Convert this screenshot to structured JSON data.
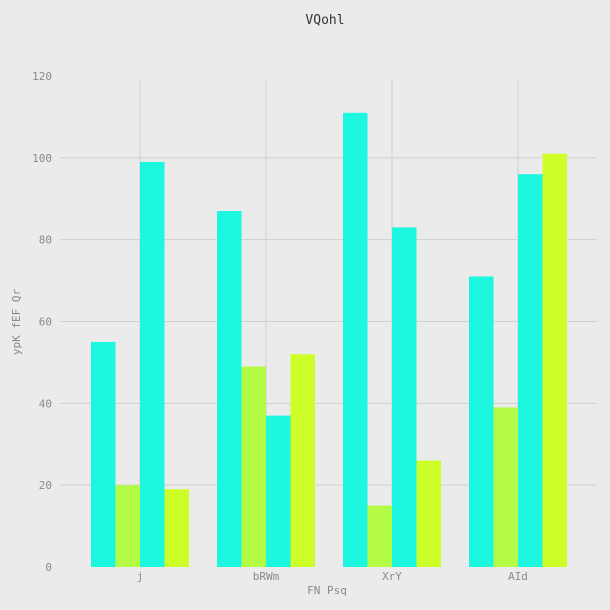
{
  "chart_data": {
    "type": "bar",
    "title": "VQohl",
    "xlabel": "FN Psq",
    "ylabel": "ypK fEF Qr",
    "categories": [
      "j",
      "bRWm",
      "XrY",
      "AId"
    ],
    "series": [
      {
        "values": [
          55,
          87,
          111,
          71
        ],
        "color": "#1df7e0"
      },
      {
        "values": [
          20,
          49,
          15,
          39
        ],
        "color": "#b4fb45"
      },
      {
        "values": [
          99,
          37,
          83,
          96
        ],
        "color": "#1df7e0"
      },
      {
        "values": [
          19,
          52,
          26,
          101
        ],
        "color": "#cefe28"
      }
    ],
    "ylim": [
      0,
      120
    ],
    "yticks": [
      0,
      20,
      40,
      60,
      80,
      100,
      120
    ],
    "grid": true,
    "background": "#ebebeb",
    "grid_color": "#cfcfcf"
  }
}
